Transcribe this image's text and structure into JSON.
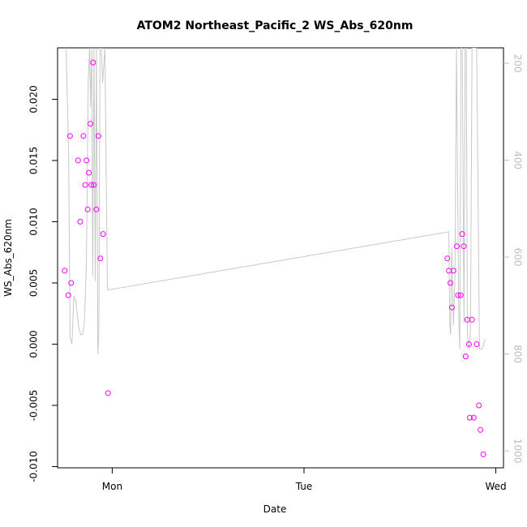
{
  "chart_data": {
    "type": "scatter",
    "title": "ATOM2 Northeast_Pacific_2 WS_Abs_620nm",
    "xlabel": "Date",
    "ylabel": "WS_Abs_620nm",
    "x_unit": "days",
    "x_ticks": [
      {
        "value": 1.0,
        "label": "Mon"
      },
      {
        "value": 2.0,
        "label": "Tue"
      },
      {
        "value": 3.0,
        "label": "Wed"
      }
    ],
    "xlim": [
      0.715,
      3.04
    ],
    "ylim": [
      -0.0101,
      0.0242
    ],
    "y_ticks": [
      -0.01,
      -0.005,
      0.0,
      0.005,
      0.01,
      0.015,
      0.02
    ],
    "y_tick_labels": [
      "-0.010",
      "-0.005",
      "0.000",
      "0.005",
      "0.010",
      "0.015",
      "0.020"
    ],
    "y2_ticks": [
      200,
      400,
      600,
      800,
      1000
    ],
    "y2_tick_labels": [
      "200",
      "400",
      "600",
      "800",
      "1000"
    ],
    "y2lim": [
      1035,
      168
    ],
    "grid": false,
    "series": [
      {
        "kind": "points",
        "color": "#ff00ff",
        "x": [
          0.752,
          0.771,
          0.78,
          0.786,
          0.822,
          0.833,
          0.85,
          0.859,
          0.866,
          0.872,
          0.878,
          0.886,
          0.891,
          0.9,
          0.904,
          0.917,
          0.928,
          0.938,
          0.952,
          0.978,
          2.747,
          2.755,
          2.763,
          2.771,
          2.779,
          2.797,
          2.803,
          2.817,
          2.825,
          2.833,
          2.843,
          2.851,
          2.86,
          2.864,
          2.876,
          2.885,
          2.9,
          2.912,
          2.92,
          2.935
        ],
        "y": [
          0.006,
          0.004,
          0.017,
          0.005,
          0.015,
          0.01,
          0.017,
          0.013,
          0.015,
          0.011,
          0.014,
          0.018,
          0.013,
          0.023,
          0.013,
          0.011,
          0.017,
          0.007,
          0.009,
          -0.004,
          0.007,
          0.006,
          0.005,
          0.003,
          0.006,
          0.008,
          0.004,
          0.004,
          0.009,
          0.008,
          -0.001,
          0.002,
          0.0,
          -0.006,
          0.002,
          -0.006,
          0.0,
          -0.005,
          -0.007,
          -0.009
        ]
      },
      {
        "kind": "line",
        "axis": "right",
        "color": "#c8c8c8",
        "x": [
          0.76,
          0.773,
          0.78,
          0.79,
          0.8,
          0.81,
          0.825,
          0.835,
          0.845,
          0.855,
          0.865,
          0.875,
          0.882,
          0.887,
          0.893,
          0.898,
          0.905,
          0.911,
          0.918,
          0.925,
          0.93,
          0.936,
          0.943,
          0.95,
          0.962,
          0.975,
          2.755,
          2.76,
          2.765,
          2.77,
          2.779,
          2.787,
          2.795,
          2.807,
          2.812,
          2.818,
          2.825,
          2.834,
          2.84,
          2.846,
          2.852,
          2.86,
          2.868,
          2.876,
          2.886,
          2.9,
          2.915,
          2.928,
          2.945
        ],
        "y": [
          168,
          390,
          765,
          780,
          680,
          690,
          745,
          760,
          760,
          735,
          620,
          240,
          168,
          290,
          168,
          640,
          168,
          650,
          168,
          800,
          760,
          168,
          168,
          240,
          168,
          668,
          548,
          740,
          760,
          580,
          740,
          640,
          168,
          730,
          790,
          168,
          168,
          735,
          168,
          168,
          760,
          790,
          750,
          168,
          168,
          168,
          790,
          790,
          770
        ]
      }
    ]
  }
}
